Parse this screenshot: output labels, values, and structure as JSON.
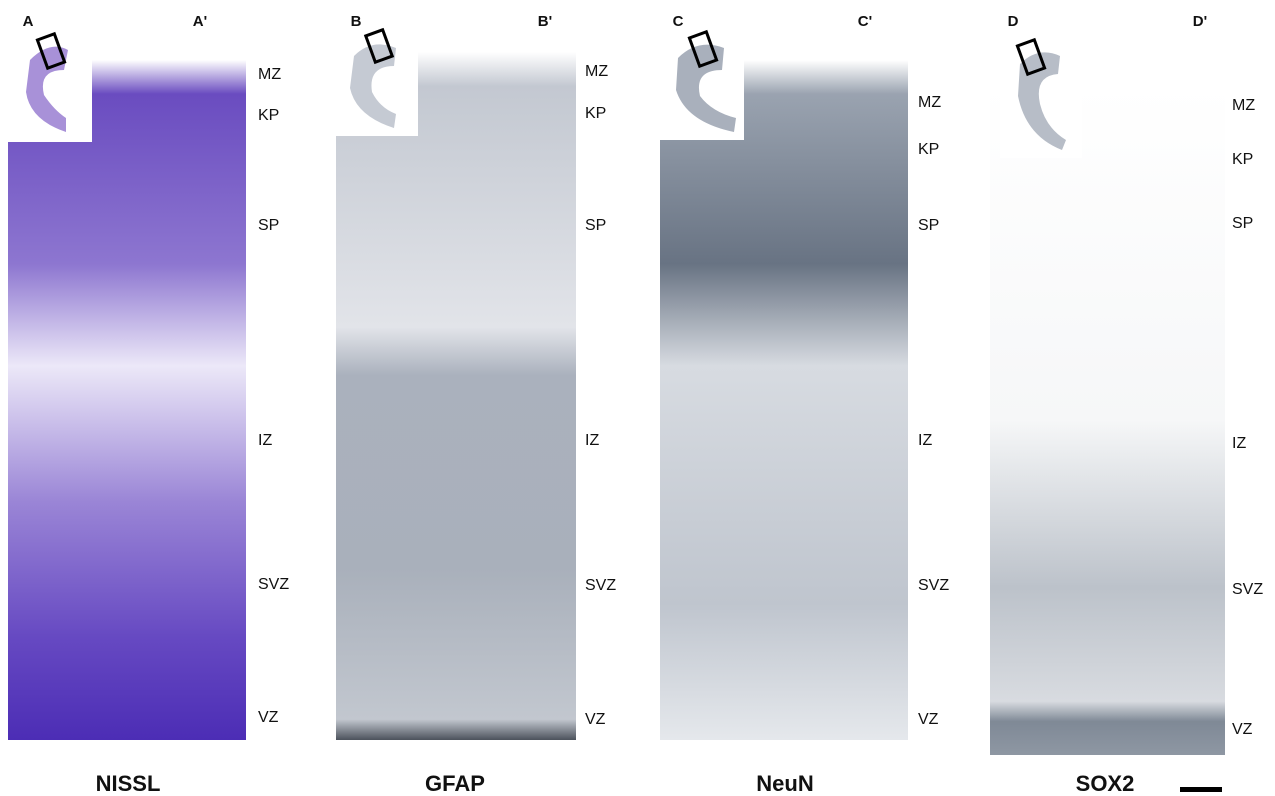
{
  "figure": {
    "panels": [
      {
        "letter": "A",
        "letter_prime": "A'",
        "stain": "NISSL",
        "layers": [
          "MZ",
          "KP",
          "SP",
          "IZ",
          "SVZ",
          "VZ"
        ]
      },
      {
        "letter": "B",
        "letter_prime": "B'",
        "stain": "GFAP",
        "layers": [
          "MZ",
          "KP",
          "SP",
          "IZ",
          "SVZ",
          "VZ"
        ]
      },
      {
        "letter": "C",
        "letter_prime": "C'",
        "stain": "NeuN",
        "layers": [
          "MZ",
          "KP",
          "SP",
          "IZ",
          "SVZ",
          "VZ"
        ]
      },
      {
        "letter": "D",
        "letter_prime": "D'",
        "stain": "SOX2",
        "layers": [
          "MZ",
          "KP",
          "SP",
          "IZ",
          "SVZ",
          "VZ"
        ]
      }
    ]
  }
}
